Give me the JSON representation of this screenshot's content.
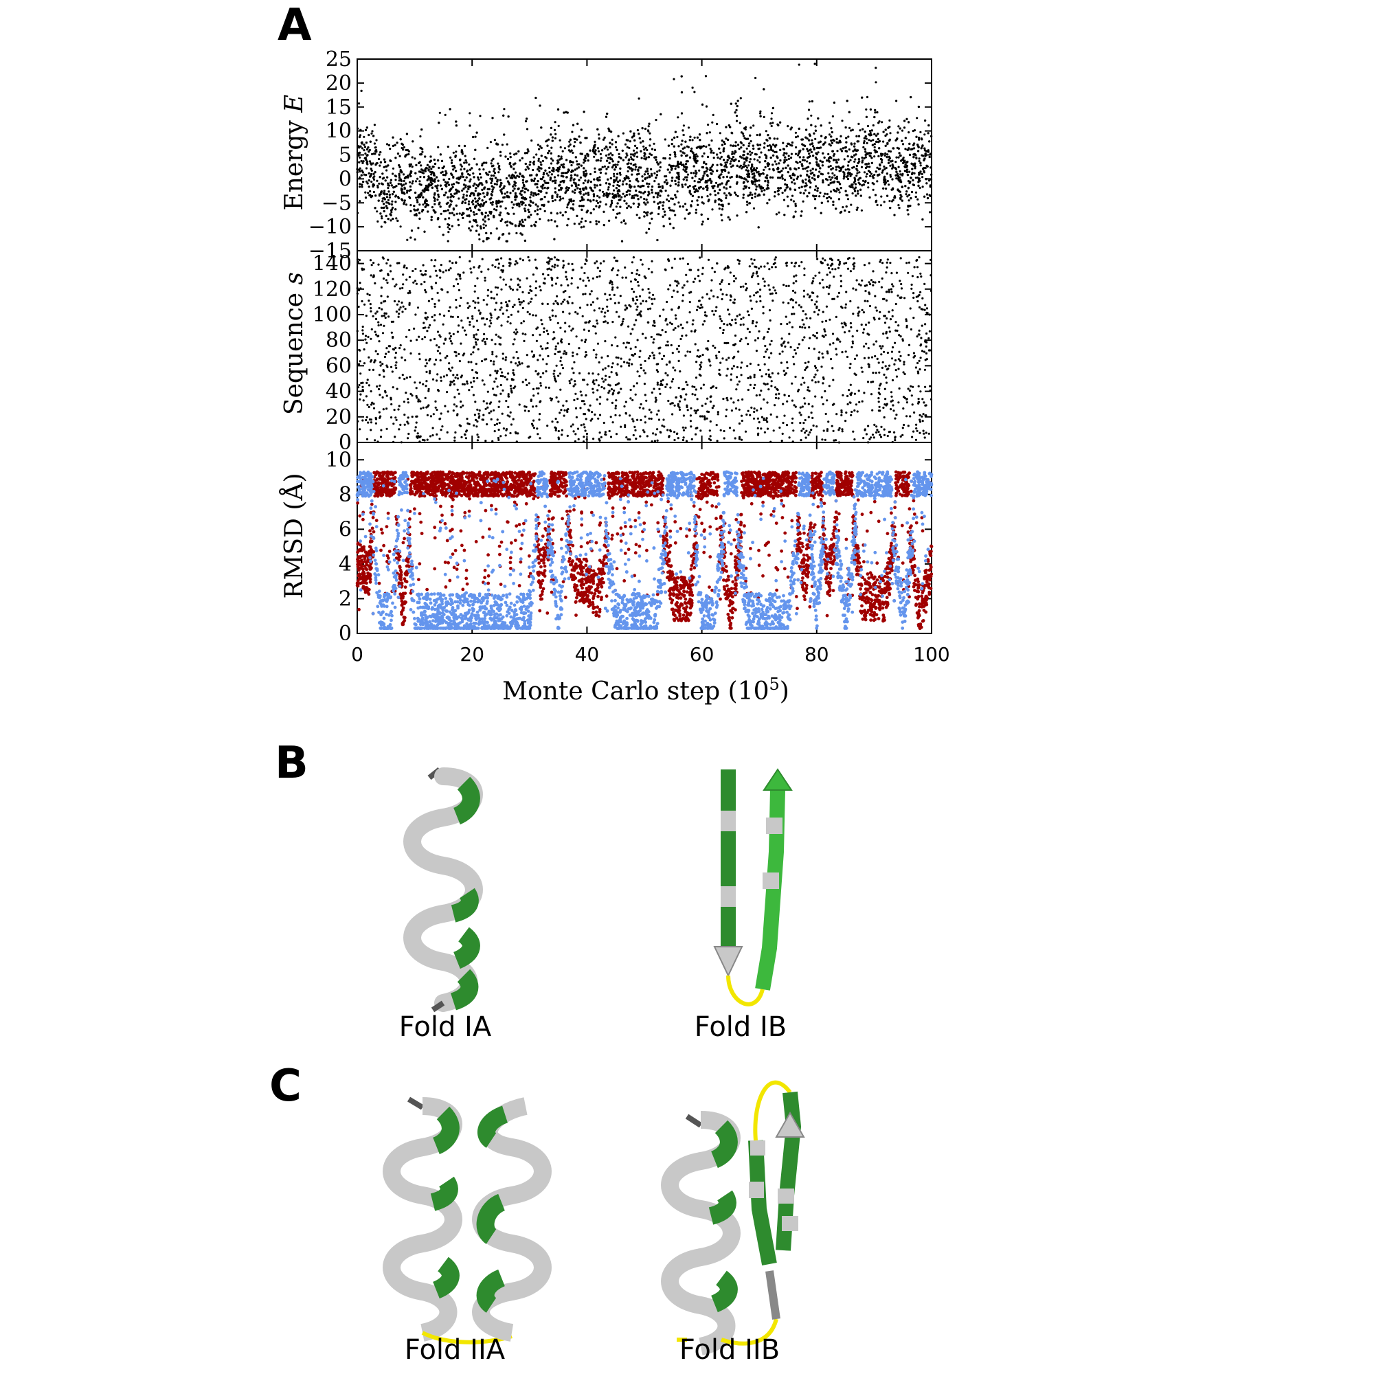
{
  "figure": {
    "panel_letters": [
      "A",
      "B",
      "C"
    ],
    "folds": {
      "b_left": "Fold IA",
      "b_right": "Fold IB",
      "c_left": "Fold IIA",
      "c_right": "Fold IIB"
    },
    "colors": {
      "helix_green": "#2e8b2e",
      "strand_green": "#3db83d",
      "coil_gray": "#c8c8c8",
      "loop_yellow": "#f2e600",
      "rmsd_series_red": "#a00000",
      "rmsd_series_blue": "#6495ed"
    },
    "structure_icons": [
      "helix",
      "beta-hairpin",
      "helix-hairpin",
      "helix-plus-hairpin"
    ]
  },
  "chart_data": [
    {
      "type": "scatter",
      "panel": "A-top",
      "ylabel_main": "Energy ",
      "ylabel_var": "E",
      "xlim": [
        0,
        100
      ],
      "ylim": [
        -15,
        25
      ],
      "yticks": [
        "25",
        "20",
        "15",
        "10",
        "5",
        "0",
        "−5",
        "−10",
        "−15"
      ],
      "yticks_values": [
        25,
        20,
        15,
        10,
        5,
        0,
        -5,
        -10,
        -15
      ],
      "description_series": "dense black points, mean ~0, range about -12 to 23",
      "x": [
        0,
        2,
        4,
        6,
        8,
        10,
        12,
        14,
        16,
        18,
        20,
        22,
        24,
        26,
        28,
        30,
        32,
        34,
        36,
        38,
        40,
        42,
        44,
        46,
        48,
        50,
        52,
        54,
        56,
        58,
        60,
        62,
        64,
        66,
        68,
        70,
        72,
        74,
        76,
        78,
        80,
        82,
        84,
        86,
        88,
        90,
        92,
        94,
        96,
        98,
        100
      ],
      "y": [
        5,
        3,
        -3,
        -2,
        0,
        -3,
        -1,
        -2,
        -3,
        -1,
        -3,
        -4,
        -2,
        -4,
        -3,
        -3,
        1,
        0,
        0,
        1,
        -1,
        0,
        2,
        -3,
        2,
        0,
        -1,
        -2,
        1,
        2,
        2,
        1,
        0,
        4,
        3,
        2,
        4,
        2,
        1,
        4,
        2,
        3,
        2,
        3,
        3,
        4,
        3,
        2,
        1,
        2,
        1
      ]
    },
    {
      "type": "scatter",
      "panel": "A-middle",
      "ylabel_main": "Sequence ",
      "ylabel_var": "s",
      "xlim": [
        0,
        100
      ],
      "ylim": [
        0,
        150
      ],
      "yticks": [
        "140",
        "120",
        "100",
        "80",
        "60",
        "40",
        "20",
        "0"
      ],
      "yticks_values": [
        140,
        120,
        100,
        80,
        60,
        40,
        20,
        0
      ],
      "description_series": "sparse black points uniformly spanning sequences 0 to 145",
      "x": [
        0,
        5,
        10,
        15,
        20,
        25,
        30,
        35,
        40,
        45,
        50,
        55,
        60,
        65,
        70,
        75,
        80,
        85,
        90,
        95,
        100
      ],
      "y": [
        140,
        60,
        80,
        20,
        90,
        60,
        130,
        100,
        145,
        10,
        70,
        140,
        20,
        145,
        10,
        100,
        40,
        120,
        145,
        10,
        140
      ]
    },
    {
      "type": "scatter",
      "panel": "A-bottom",
      "ylabel": "RMSD (Å)",
      "xlabel_main": "Monte Carlo step (10",
      "xlabel_sup": "5",
      "xlabel_end": ")",
      "xlim": [
        0,
        100
      ],
      "ylim": [
        0,
        11
      ],
      "xticks": [
        "0",
        "20",
        "40",
        "60",
        "80",
        "100"
      ],
      "xticks_values": [
        0,
        20,
        40,
        60,
        80,
        100
      ],
      "yticks": [
        "10",
        "8",
        "6",
        "4",
        "2",
        "0"
      ],
      "yticks_values": [
        10,
        8,
        6,
        4,
        2,
        0
      ],
      "series": [
        {
          "color": "#a00000",
          "x": [
            0,
            2,
            4,
            6,
            8,
            10,
            15,
            20,
            25,
            30,
            32,
            35,
            38,
            40,
            42,
            45,
            48,
            50,
            52,
            55,
            58,
            60,
            62,
            65,
            68,
            70,
            72,
            75,
            78,
            80,
            82,
            85,
            88,
            90,
            92,
            95,
            98,
            100
          ],
          "y": [
            4,
            3.5,
            9,
            9,
            1,
            9,
            9,
            9,
            9,
            9,
            3,
            9,
            3,
            3,
            2,
            9,
            9,
            9,
            9,
            2,
            2,
            9,
            9,
            1,
            9,
            9,
            9,
            9,
            3,
            9,
            3,
            9,
            2,
            2,
            2,
            9,
            1,
            4
          ]
        },
        {
          "color": "#6495ed",
          "x": [
            0,
            2,
            4,
            6,
            8,
            10,
            15,
            20,
            25,
            30,
            32,
            35,
            38,
            40,
            42,
            45,
            48,
            50,
            52,
            55,
            58,
            60,
            62,
            65,
            68,
            70,
            72,
            75,
            78,
            80,
            82,
            85,
            88,
            90,
            92,
            95,
            98,
            100
          ],
          "y": [
            9,
            9,
            1,
            1,
            9,
            1,
            1,
            1,
            1,
            1,
            9,
            1,
            9,
            9,
            9,
            1,
            1,
            1,
            1,
            9,
            9,
            1,
            1,
            9,
            1,
            1,
            1,
            1,
            9,
            1,
            9,
            1,
            9,
            9,
            9,
            1,
            9,
            9
          ]
        }
      ]
    }
  ]
}
